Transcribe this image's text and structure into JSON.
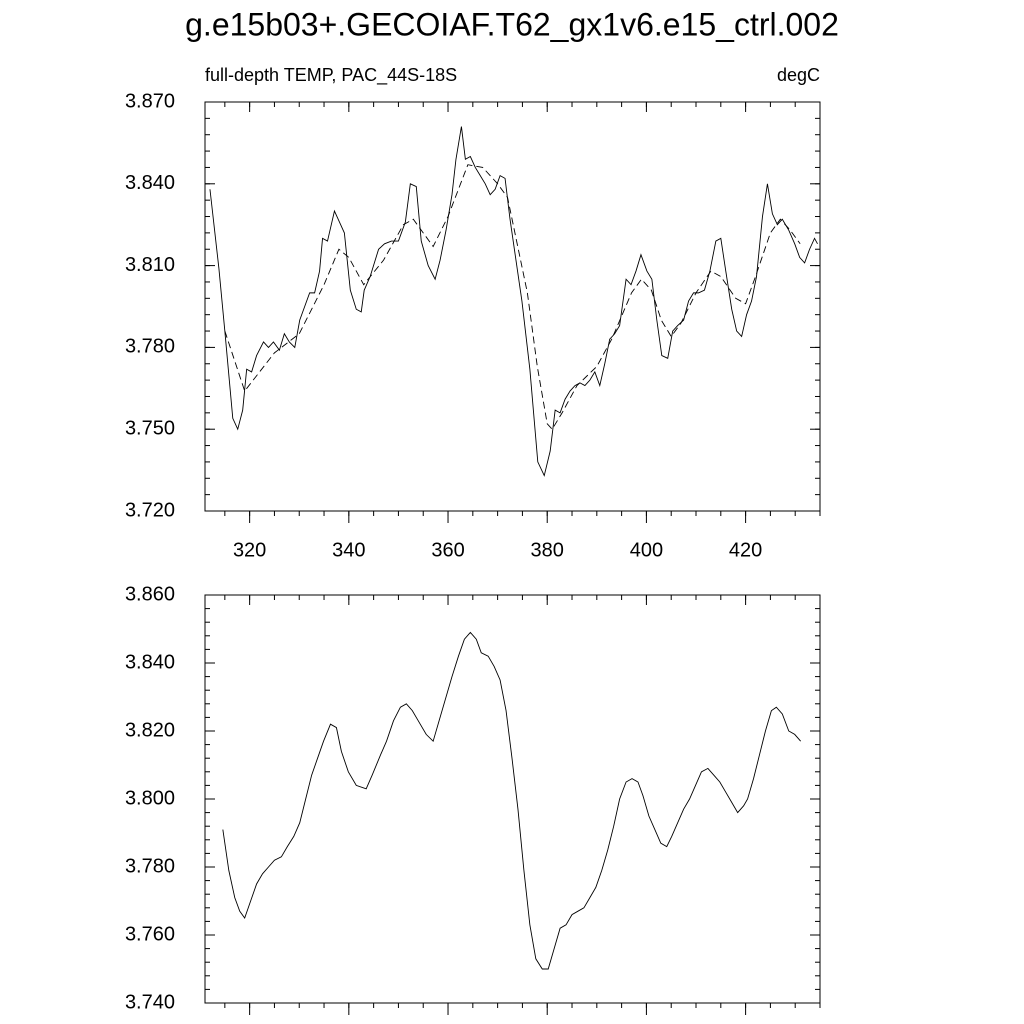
{
  "title": "g.e15b03+.GECOIAF.T62_gx1v6.e15_ctrl.002",
  "chart_data": [
    {
      "type": "line",
      "subtitle_left": "full-depth TEMP, PAC_44S-18S",
      "subtitle_right": "degC",
      "xlim": [
        311,
        435
      ],
      "xticks": [
        320,
        340,
        360,
        380,
        400,
        420
      ],
      "show_xtick_labels": true,
      "ylim": [
        3.72,
        3.87
      ],
      "yticks": [
        {
          "value": 3.72,
          "label": "3.720"
        },
        {
          "value": 3.75,
          "label": "3.750"
        },
        {
          "value": 3.78,
          "label": "3.780"
        },
        {
          "value": 3.81,
          "label": "3.810"
        },
        {
          "value": 3.84,
          "label": "3.840"
        },
        {
          "value": 3.87,
          "label": "3.870"
        }
      ],
      "series": [
        {
          "color": "#000000",
          "line_style": "solid",
          "x": [
            312.0,
            313.8,
            315.0,
            316.6,
            317.6,
            318.6,
            319.4,
            320.4,
            321.4,
            322.8,
            323.8,
            324.8,
            326.0,
            327.0,
            328.0,
            329.1,
            330.1,
            331.1,
            332.1,
            333.1,
            334.1,
            334.7,
            335.7,
            337.1,
            338.1,
            339.1,
            340.3,
            341.5,
            342.5,
            343.1,
            344.3,
            346.0,
            347.2,
            348.6,
            350.0,
            351.4,
            352.4,
            353.6,
            354.6,
            356.0,
            357.4,
            358.4,
            359.6,
            360.8,
            361.6,
            362.7,
            363.5,
            364.5,
            365.5,
            366.5,
            367.5,
            368.5,
            369.5,
            370.5,
            371.5,
            372.5,
            373.7,
            374.9,
            376.5,
            378.1,
            379.4,
            380.6,
            381.6,
            382.6,
            383.6,
            384.6,
            385.6,
            386.6,
            387.6,
            388.6,
            389.6,
            390.6,
            391.6,
            392.6,
            393.6,
            394.6,
            395.9,
            396.9,
            397.9,
            398.9,
            400.1,
            401.1,
            402.1,
            403.1,
            404.3,
            405.3,
            406.3,
            407.5,
            408.5,
            409.5,
            410.5,
            411.7,
            412.8,
            414.0,
            415.0,
            416.0,
            417.2,
            418.2,
            419.2,
            420.2,
            421.2,
            422.2,
            423.4,
            424.4,
            425.4,
            426.4,
            427.4,
            428.7,
            429.9,
            430.9,
            431.9,
            432.9,
            433.9,
            434.5
          ],
          "values": [
            3.838,
            3.809,
            3.786,
            3.754,
            3.75,
            3.757,
            3.772,
            3.771,
            3.777,
            3.782,
            3.78,
            3.782,
            3.779,
            3.785,
            3.782,
            3.78,
            3.79,
            3.795,
            3.8,
            3.8,
            3.808,
            3.82,
            3.819,
            3.83,
            3.826,
            3.822,
            3.801,
            3.794,
            3.793,
            3.801,
            3.806,
            3.816,
            3.818,
            3.819,
            3.819,
            3.826,
            3.84,
            3.839,
            3.819,
            3.81,
            3.805,
            3.812,
            3.823,
            3.836,
            3.849,
            3.861,
            3.849,
            3.85,
            3.846,
            3.843,
            3.84,
            3.836,
            3.838,
            3.843,
            3.842,
            3.827,
            3.812,
            3.797,
            3.772,
            3.738,
            3.733,
            3.742,
            3.757,
            3.756,
            3.761,
            3.764,
            3.766,
            3.767,
            3.766,
            3.768,
            3.771,
            3.766,
            3.774,
            3.783,
            3.785,
            3.788,
            3.805,
            3.803,
            3.808,
            3.814,
            3.808,
            3.805,
            3.79,
            3.777,
            3.776,
            3.786,
            3.788,
            3.79,
            3.797,
            3.8,
            3.8,
            3.801,
            3.808,
            3.819,
            3.82,
            3.808,
            3.794,
            3.786,
            3.784,
            3.792,
            3.797,
            3.806,
            3.828,
            3.84,
            3.829,
            3.825,
            3.827,
            3.823,
            3.818,
            3.813,
            3.811,
            3.816,
            3.82,
            3.818
          ]
        },
        {
          "color": "#000000",
          "line_style": "dashed",
          "x": [
            315,
            319,
            325,
            330,
            335,
            338,
            340,
            343,
            347,
            351,
            353,
            357,
            360,
            364,
            367,
            370,
            372,
            376,
            378,
            380,
            381,
            383,
            386,
            390,
            393,
            397,
            399,
            401,
            403,
            405,
            407,
            410,
            413,
            415,
            418,
            420,
            422,
            425,
            427,
            429,
            431
          ],
          "values": [
            3.786,
            3.764,
            3.778,
            3.785,
            3.803,
            3.816,
            3.813,
            3.803,
            3.812,
            3.825,
            3.827,
            3.817,
            3.828,
            3.847,
            3.846,
            3.84,
            3.835,
            3.8,
            3.773,
            3.752,
            3.75,
            3.756,
            3.766,
            3.773,
            3.783,
            3.8,
            3.805,
            3.801,
            3.79,
            3.784,
            3.789,
            3.8,
            3.808,
            3.806,
            3.798,
            3.796,
            3.806,
            3.822,
            3.827,
            3.823,
            3.818
          ]
        }
      ]
    },
    {
      "type": "line",
      "xlim": [
        311,
        435
      ],
      "xticks": [
        320,
        340,
        360,
        380,
        400,
        420
      ],
      "show_xtick_labels": false,
      "ylim": [
        3.74,
        3.86
      ],
      "yticks": [
        {
          "value": 3.74,
          "label": "3.740"
        },
        {
          "value": 3.76,
          "label": "3.760"
        },
        {
          "value": 3.78,
          "label": "3.780"
        },
        {
          "value": 3.8,
          "label": "3.800"
        },
        {
          "value": 3.82,
          "label": "3.820"
        },
        {
          "value": 3.84,
          "label": "3.840"
        },
        {
          "value": 3.86,
          "label": "3.860"
        }
      ],
      "series": [
        {
          "color": "#000000",
          "line_style": "solid",
          "x": [
            314.6,
            315.8,
            317.0,
            318.0,
            319.0,
            320.2,
            321.4,
            322.6,
            323.8,
            325.0,
            326.4,
            327.6,
            328.9,
            330.1,
            331.3,
            332.5,
            333.7,
            334.9,
            336.3,
            337.5,
            338.5,
            339.9,
            341.5,
            343.5,
            344.7,
            346.4,
            347.6,
            349.0,
            350.4,
            351.6,
            352.8,
            354.0,
            355.6,
            357.0,
            358.2,
            359.4,
            360.8,
            362.1,
            363.3,
            364.5,
            365.7,
            366.7,
            368.1,
            369.3,
            370.5,
            371.7,
            372.9,
            374.1,
            375.3,
            376.5,
            377.7,
            379.0,
            380.2,
            381.4,
            382.6,
            383.8,
            385.0,
            386.2,
            387.4,
            388.6,
            389.8,
            391.0,
            392.2,
            393.4,
            394.6,
            395.9,
            397.1,
            398.3,
            399.3,
            400.5,
            401.7,
            402.9,
            404.1,
            405.1,
            406.3,
            407.5,
            408.7,
            409.9,
            411.1,
            412.4,
            413.6,
            414.8,
            416.0,
            417.2,
            418.4,
            419.6,
            420.4,
            421.6,
            422.8,
            424.0,
            425.2,
            426.2,
            427.4,
            428.7,
            429.9,
            431.1
          ],
          "values": [
            3.791,
            3.779,
            3.771,
            3.767,
            3.765,
            3.77,
            3.775,
            3.778,
            3.78,
            3.782,
            3.783,
            3.786,
            3.789,
            3.793,
            3.8,
            3.807,
            3.812,
            3.817,
            3.822,
            3.821,
            3.814,
            3.808,
            3.804,
            3.803,
            3.807,
            3.813,
            3.817,
            3.823,
            3.827,
            3.828,
            3.826,
            3.823,
            3.819,
            3.817,
            3.823,
            3.829,
            3.836,
            3.842,
            3.847,
            3.849,
            3.847,
            3.843,
            3.842,
            3.839,
            3.835,
            3.826,
            3.812,
            3.797,
            3.779,
            3.763,
            3.753,
            3.75,
            3.75,
            3.756,
            3.762,
            3.763,
            3.766,
            3.767,
            3.768,
            3.771,
            3.774,
            3.779,
            3.785,
            3.792,
            3.8,
            3.805,
            3.806,
            3.805,
            3.801,
            3.795,
            3.791,
            3.787,
            3.786,
            3.789,
            3.793,
            3.797,
            3.8,
            3.804,
            3.808,
            3.809,
            3.807,
            3.805,
            3.802,
            3.799,
            3.796,
            3.798,
            3.8,
            3.806,
            3.813,
            3.82,
            3.826,
            3.827,
            3.825,
            3.82,
            3.819,
            3.817
          ]
        }
      ]
    }
  ]
}
